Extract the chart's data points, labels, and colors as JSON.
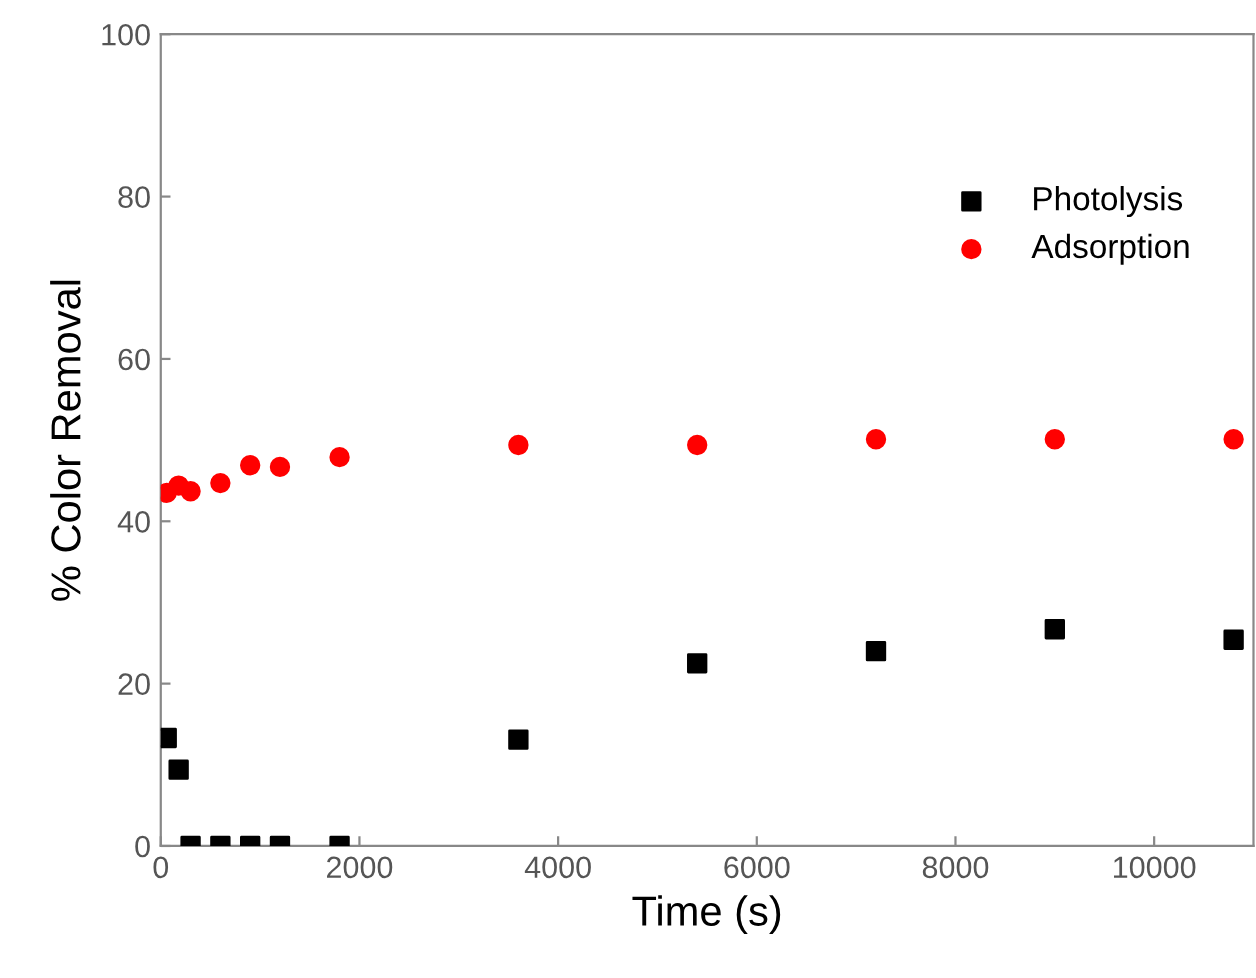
{
  "chart_data": {
    "type": "scatter",
    "xlabel": "Time (s)",
    "ylabel": "% Color Removal",
    "xlim": [
      0,
      11000
    ],
    "ylim": [
      0,
      100
    ],
    "xticks": [
      0,
      2000,
      4000,
      6000,
      8000,
      10000
    ],
    "yticks": [
      0,
      20,
      40,
      60,
      80,
      100
    ],
    "grid": false,
    "legend": "top right",
    "series": [
      {
        "name": "Photolysis",
        "color": "#000000",
        "marker": "square",
        "x": [
          60,
          180,
          300,
          600,
          900,
          1200,
          1800,
          3600,
          5400,
          7200,
          9000,
          10800
        ],
        "values": [
          13.3,
          9.4,
          0,
          0,
          0,
          0,
          0,
          13.1,
          22.5,
          24,
          26.7,
          25.4
        ]
      },
      {
        "name": "Adsorption",
        "color": "#ff0000",
        "marker": "circle",
        "x": [
          60,
          180,
          300,
          600,
          900,
          1200,
          1800,
          3600,
          5400,
          7200,
          9000,
          10800
        ],
        "values": [
          43.5,
          44.4,
          43.7,
          44.7,
          46.9,
          46.7,
          47.9,
          49.4,
          49.4,
          50.1,
          50.1,
          50.1
        ]
      }
    ]
  }
}
